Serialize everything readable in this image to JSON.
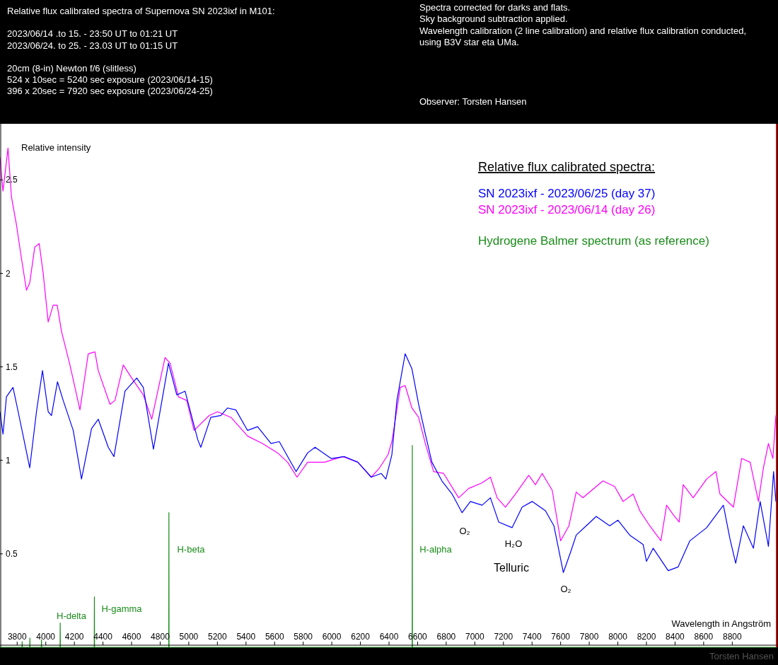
{
  "chart_data": {
    "type": "line",
    "title": "Relative flux calibrated spectra of Supernova SN 2023ixf in M101:",
    "xlabel": "Wavelength in Angström",
    "ylabel": "Relative intensity",
    "legend_title": "Relative flux calibrated spectra:",
    "legend": "top right",
    "grid": false,
    "xlim": [
      3680,
      9110
    ],
    "xticks": [
      3800,
      4000,
      4200,
      4400,
      4600,
      4800,
      5000,
      5200,
      5400,
      5600,
      5800,
      6000,
      6200,
      6400,
      6600,
      6800,
      7000,
      7200,
      7400,
      7600,
      7800,
      8000,
      8200,
      8400,
      8600,
      8800
    ],
    "ylim": [
      0,
      2.8
    ],
    "yticks": [
      0.5,
      1,
      1.5,
      2,
      2.5
    ],
    "series": [
      {
        "name": "SN 2023ixf - 2023/06/25 (day 37)",
        "color": "#0000ff",
        "x": [
          3680,
          3701,
          3725,
          3771,
          3807,
          3853,
          3888,
          3935,
          3977,
          4017,
          4040,
          4082,
          4122,
          4192,
          4250,
          4320,
          4367,
          4437,
          4477,
          4554,
          4636,
          4682,
          4753,
          4858,
          4916,
          4974,
          5063,
          5084,
          5154,
          5224,
          5271,
          5329,
          5411,
          5481,
          5575,
          5633,
          5750,
          5831,
          5883,
          5995,
          6089,
          6182,
          6276,
          6345,
          6378,
          6420,
          6455,
          6513,
          6560,
          6607,
          6654,
          6700,
          6770,
          6841,
          6911,
          6969,
          7051,
          7109,
          7167,
          7261,
          7331,
          7401,
          7494,
          7553,
          7619,
          7670,
          7709,
          7779,
          7849,
          7943,
          8001,
          8083,
          8177,
          8200,
          8247,
          8352,
          8422,
          8504,
          8621,
          8738,
          8784,
          8824,
          8878,
          8948,
          8995,
          9053,
          9089,
          9105
        ],
        "values": [
          1.26,
          1.14,
          1.34,
          1.39,
          1.26,
          1.09,
          0.96,
          1.26,
          1.48,
          1.26,
          1.24,
          1.42,
          1.32,
          1.16,
          0.9,
          1.17,
          1.22,
          1.07,
          1.02,
          1.37,
          1.44,
          1.39,
          1.06,
          1.52,
          1.35,
          1.37,
          1.11,
          1.07,
          1.23,
          1.24,
          1.28,
          1.27,
          1.16,
          1.18,
          1.09,
          1.1,
          0.94,
          1.04,
          1.07,
          1.01,
          1.02,
          0.99,
          0.91,
          0.93,
          0.9,
          1.03,
          1.32,
          1.57,
          1.49,
          1.3,
          1.14,
          0.99,
          0.89,
          0.82,
          0.72,
          0.78,
          0.76,
          0.8,
          0.67,
          0.64,
          0.75,
          0.78,
          0.73,
          0.65,
          0.4,
          0.51,
          0.6,
          0.65,
          0.7,
          0.65,
          0.68,
          0.6,
          0.55,
          0.46,
          0.53,
          0.41,
          0.43,
          0.57,
          0.64,
          0.76,
          0.58,
          0.45,
          0.65,
          0.53,
          0.78,
          0.54,
          0.94,
          0.78
        ]
      },
      {
        "name": "SN 2023ixf - 2023/06/14 (day 26)",
        "color": "#ff00ff",
        "x": [
          3680,
          3701,
          3736,
          3760,
          3795,
          3830,
          3865,
          3888,
          3923,
          3954,
          3982,
          4017,
          4052,
          4080,
          4110,
          4169,
          4239,
          4297,
          4344,
          4367,
          4449,
          4484,
          4542,
          4601,
          4682,
          4741,
          4834,
          4869,
          4928,
          4986,
          5037,
          5143,
          5201,
          5295,
          5411,
          5516,
          5621,
          5691,
          5757,
          5831,
          5949,
          6077,
          6182,
          6276,
          6334,
          6393,
          6420,
          6479,
          6513,
          6560,
          6607,
          6654,
          6712,
          6782,
          6887,
          6958,
          7051,
          7109,
          7156,
          7214,
          7284,
          7377,
          7424,
          7471,
          7541,
          7600,
          7658,
          7709,
          7756,
          7896,
          7978,
          8037,
          8107,
          8154,
          8223,
          8301,
          8341,
          8387,
          8429,
          8457,
          8527,
          8621,
          8686,
          8714,
          8808,
          8866,
          8925,
          8983,
          9018,
          9053,
          9084,
          9105
        ],
        "values": [
          2.62,
          2.44,
          2.67,
          2.41,
          2.26,
          2.08,
          1.91,
          1.95,
          2.14,
          2.16,
          2.0,
          1.74,
          1.83,
          1.83,
          1.69,
          1.51,
          1.27,
          1.57,
          1.58,
          1.48,
          1.3,
          1.32,
          1.51,
          1.44,
          1.35,
          1.22,
          1.55,
          1.52,
          1.34,
          1.32,
          1.16,
          1.24,
          1.26,
          1.23,
          1.13,
          1.09,
          1.04,
          0.99,
          0.91,
          0.99,
          0.99,
          1.02,
          0.99,
          0.91,
          0.96,
          1.03,
          1.1,
          1.39,
          1.4,
          1.28,
          1.23,
          1.09,
          0.94,
          0.93,
          0.8,
          0.85,
          0.88,
          0.91,
          0.8,
          0.75,
          0.82,
          0.92,
          0.87,
          0.93,
          0.84,
          0.57,
          0.65,
          0.83,
          0.8,
          0.89,
          0.86,
          0.78,
          0.82,
          0.73,
          0.65,
          0.57,
          0.76,
          0.71,
          0.67,
          0.87,
          0.8,
          0.9,
          0.94,
          0.82,
          0.75,
          1.01,
          0.99,
          0.78,
          0.96,
          1.09,
          1.01,
          1.24
        ]
      },
      {
        "name": "Hydrogene Balmer spectrum (as reference)",
        "color": "#1a8c1a",
        "x": [
          3680,
          3834,
          3835,
          3836,
          3888,
          3889,
          3890,
          3969,
          3970,
          3971,
          4100,
          4101,
          4102,
          4339,
          4340,
          4341,
          4860,
          4861,
          4862,
          6562,
          6563,
          6564,
          9110
        ],
        "values": [
          0,
          0,
          0.03,
          0,
          0,
          0.05,
          0,
          0,
          0.04,
          0,
          0,
          0.13,
          0,
          0,
          0.27,
          0,
          0,
          0.72,
          0,
          0,
          1.08,
          0,
          0
        ]
      }
    ],
    "annotations": [
      "2023/06/14 .to 15. -  23:50 UT to 01:21 UT",
      "2023/06/24. to 25. -  23.03 UT to 01:15 UT",
      "20cm (8-in) Newton f/6 (slitless)",
      "524 x 10sec = 5240 sec exposure (2023/06/14-15)",
      "396 x 20sec = 7920 sec exposure (2023/06/24-25)",
      "Spectra corrected for darks and flats.",
      "Sky background subtraction applied.",
      "Wavelength calibration (2 line calibration) and relative flux calibration conducted,",
      "using B3V star eta UMa.",
      "Observer: Torsten Hansen",
      "Torsten Hansen",
      "H-delta",
      "H-gamma",
      "H-beta",
      "H-alpha",
      "O₂",
      "H₂O",
      "Telluric",
      "O₂"
    ]
  }
}
